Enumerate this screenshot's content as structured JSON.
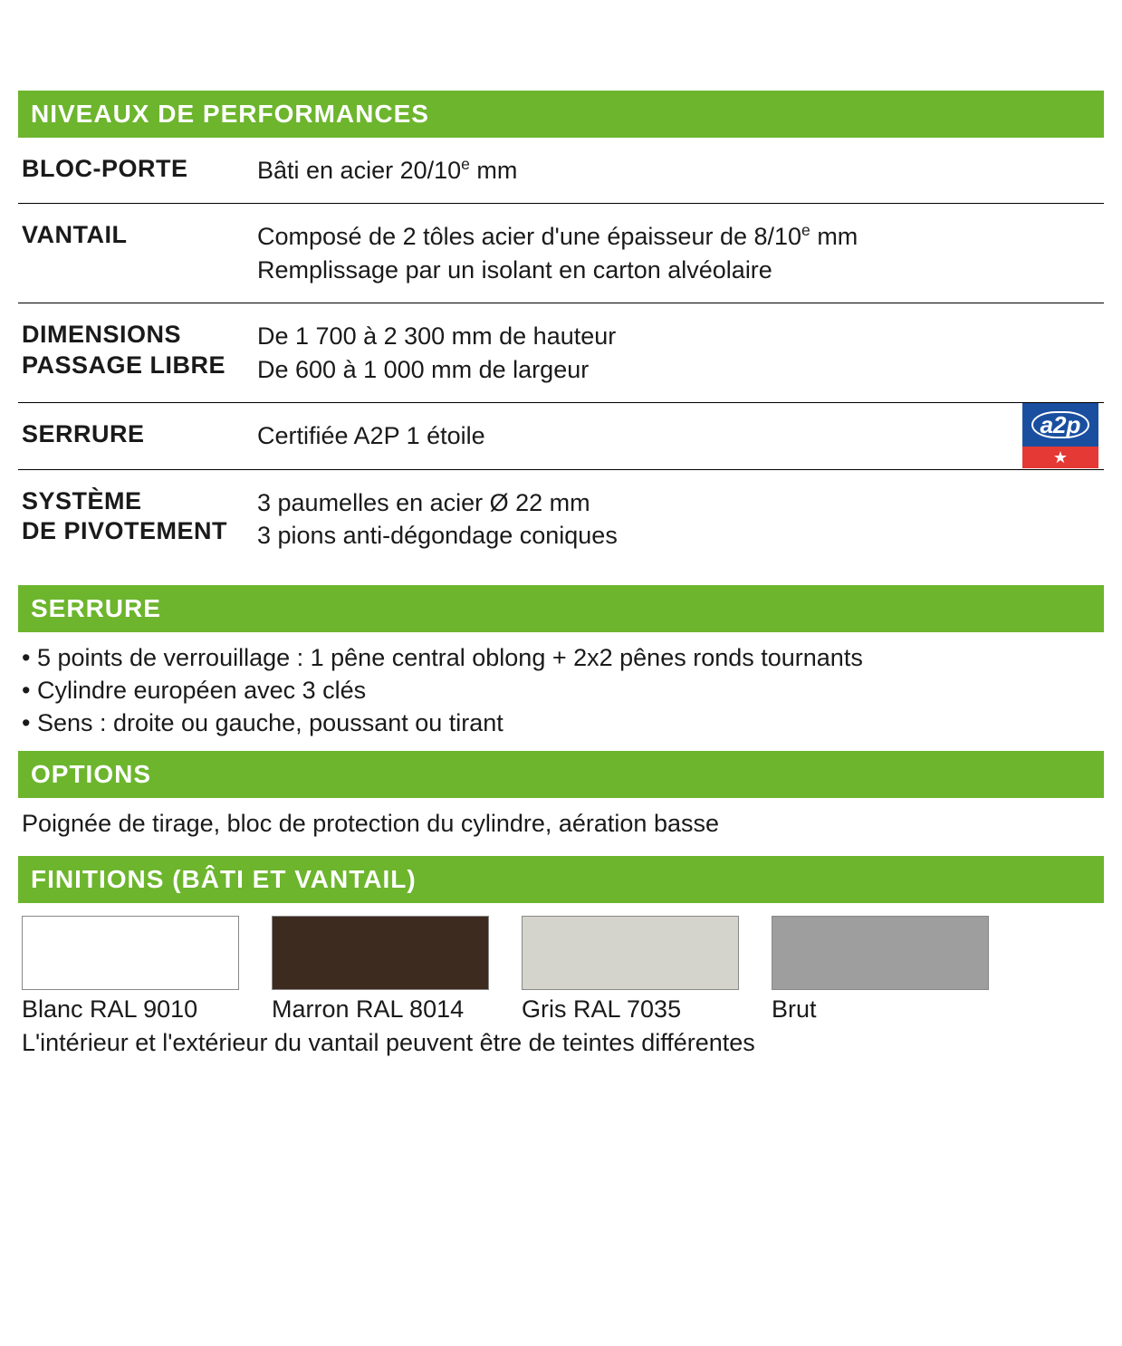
{
  "colors": {
    "header_bg": "#6cb52d",
    "header_text": "#ffffff",
    "divider": "#000000",
    "badge_blue": "#1a4fa0",
    "badge_red": "#e53935"
  },
  "performance": {
    "title": "NIVEAUX DE PERFORMANCES",
    "rows": [
      {
        "label": "BLOC-PORTE",
        "value_html": "Bâti en acier 20/10<sup>e</sup> mm"
      },
      {
        "label": "VANTAIL",
        "value_html": "Composé de 2 tôles acier d'une épaisseur de 8/10<sup>e</sup> mm<br>Remplissage par un isolant en carton alvéolaire"
      },
      {
        "label": "DIMENSIONS<br>PASSAGE LIBRE",
        "value_html": "De 1 700  à 2 300 mm de hauteur<br>De 600 à 1 000 mm de largeur"
      },
      {
        "label": "SERRURE",
        "value_html": "Certifiée A2P 1 étoile",
        "badge": "a2p"
      },
      {
        "label": "SYSTÈME<br>DE PIVOTEMENT",
        "value_html": "3 paumelles en acier Ø 22 mm<br>3 pions anti-dégondage coniques"
      }
    ]
  },
  "serrure": {
    "title": "SERRURE",
    "bullets": [
      "5 points de verrouillage : 1 pêne central oblong + 2x2 pênes ronds tournants",
      "Cylindre européen avec 3 clés",
      "Sens : droite ou gauche, poussant ou tirant"
    ]
  },
  "options": {
    "title": "OPTIONS",
    "text": "Poignée de tirage, bloc de protection du cylindre, aération basse"
  },
  "finitions": {
    "title": "FINITIONS (BÂTI ET VANTAIL)",
    "swatches": [
      {
        "label": "Blanc RAL 9010",
        "color": "#ffffff"
      },
      {
        "label": "Marron RAL 8014",
        "color": "#3d2b1f"
      },
      {
        "label": "Gris RAL 7035",
        "color": "#d4d4cc"
      },
      {
        "label": "Brut",
        "color": "#9e9e9e"
      }
    ],
    "note": "L'intérieur et l'extérieur du vantail peuvent être de teintes différentes"
  },
  "a2p": {
    "text": "a2p",
    "star": "★"
  }
}
